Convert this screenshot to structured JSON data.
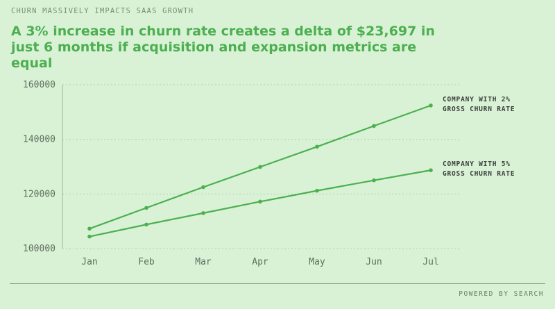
{
  "header": {
    "kicker": "CHURN MASSIVELY IMPACTS SAAS GROWTH",
    "headline": "A 3% increase in churn rate creates a delta of $23,697 in just 6 months if acquisition and expansion metrics are equal"
  },
  "footer": {
    "credit": "POWERED BY SEARCH"
  },
  "colors": {
    "background": "#d9f2d6",
    "accent": "#4caf50",
    "grid": "#b3cdb0"
  },
  "chart_data": {
    "type": "line",
    "categories": [
      "Jan",
      "Feb",
      "Mar",
      "Apr",
      "May",
      "Jun",
      "Jul"
    ],
    "ylim": [
      100000,
      160000
    ],
    "yticks": [
      100000,
      120000,
      140000,
      160000
    ],
    "grid": true,
    "series": [
      {
        "name": "COMPANY WITH 2% GROSS CHURN RATE",
        "name_lines": [
          "COMPANY WITH 2%",
          "GROSS CHURN RATE"
        ],
        "values": [
          107300,
          114900,
          122500,
          129900,
          137300,
          144900,
          152400
        ],
        "color": "#4caf50"
      },
      {
        "name": "COMPANY WITH 5% GROSS CHURN RATE",
        "name_lines": [
          "COMPANY WITH 5%",
          "GROSS CHURN RATE"
        ],
        "values": [
          104400,
          108800,
          113000,
          117200,
          121200,
          125000,
          128700
        ],
        "color": "#4caf50"
      }
    ]
  }
}
